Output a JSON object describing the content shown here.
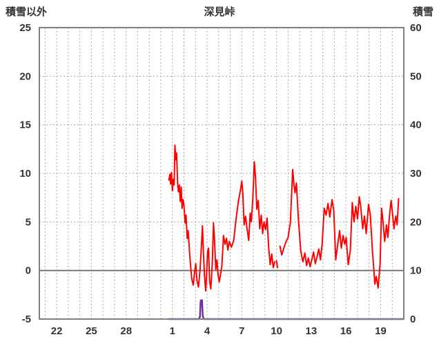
{
  "header": {
    "left_axis_title": "積雪以外",
    "title": "深見峠",
    "right_axis_title": "積雪"
  },
  "chart_data": {
    "type": "line",
    "title": "深見峠",
    "left_axis": {
      "title": "積雪以外",
      "min": -5,
      "max": 25,
      "ticks": [
        25,
        20,
        15,
        10,
        5,
        0,
        -5
      ],
      "zero_line": 0
    },
    "right_axis": {
      "title": "積雪",
      "min": 0,
      "max": 60,
      "ticks": [
        60,
        50,
        40,
        30,
        20,
        10,
        0
      ]
    },
    "x_axis": {
      "domain_days": [
        20.5,
        52
      ],
      "daily_grid": [
        21,
        51
      ],
      "ticks": [
        {
          "day": 22,
          "label": "22"
        },
        {
          "day": 25,
          "label": "25"
        },
        {
          "day": 28,
          "label": "28"
        },
        {
          "day": 32,
          "label": "1"
        },
        {
          "day": 35,
          "label": "4"
        },
        {
          "day": 38,
          "label": "7"
        },
        {
          "day": 41,
          "label": "10"
        },
        {
          "day": 44,
          "label": "13"
        },
        {
          "day": 47,
          "label": "16"
        },
        {
          "day": 50,
          "label": "19"
        }
      ]
    },
    "grid": true,
    "legend_position": "none",
    "series": [
      {
        "name": "積雪以外",
        "axis": "left",
        "color": "#ff0000",
        "width": 2,
        "segments": [
          [
            [
              31.7,
              9.3
            ],
            [
              31.78,
              9.9
            ],
            [
              31.85,
              8.9
            ],
            [
              31.92,
              10.1
            ],
            [
              32.0,
              8.2
            ],
            [
              32.08,
              9.4
            ],
            [
              32.15,
              8.8
            ],
            [
              32.22,
              12.9
            ],
            [
              32.3,
              11.4
            ],
            [
              32.36,
              12.1
            ],
            [
              32.45,
              9.0
            ],
            [
              32.52,
              8.1
            ],
            [
              32.6,
              8.8
            ],
            [
              32.68,
              7.1
            ],
            [
              32.76,
              8.6
            ],
            [
              32.84,
              6.4
            ],
            [
              32.92,
              7.3
            ],
            [
              33.0,
              6.7
            ],
            [
              33.1,
              4.9
            ],
            [
              33.18,
              5.7
            ],
            [
              33.28,
              3.3
            ],
            [
              33.36,
              4.1
            ],
            [
              33.48,
              1.9
            ],
            [
              33.58,
              0.4
            ],
            [
              33.68,
              -0.9
            ],
            [
              33.8,
              -1.5
            ],
            [
              33.92,
              -0.2
            ],
            [
              34.02,
              0.7
            ],
            [
              34.12,
              -1.0
            ],
            [
              34.25,
              -1.7
            ],
            [
              34.4,
              0.2
            ],
            [
              34.52,
              2.8
            ],
            [
              34.6,
              4.6
            ],
            [
              34.68,
              1.8
            ],
            [
              34.78,
              -0.7
            ],
            [
              34.88,
              -2.1
            ],
            [
              34.96,
              -0.3
            ],
            [
              35.04,
              1.9
            ],
            [
              35.12,
              2.3
            ],
            [
              35.22,
              -1.1
            ],
            [
              35.32,
              -1.9
            ],
            [
              35.45,
              0.8
            ],
            [
              35.55,
              4.9
            ],
            [
              35.65,
              3.0
            ],
            [
              35.75,
              0.1
            ],
            [
              35.85,
              1.1
            ],
            [
              35.95,
              -0.5
            ],
            [
              36.05,
              -1.2
            ],
            [
              36.15,
              -0.5
            ],
            [
              36.28,
              0.5
            ],
            [
              36.42,
              3.6
            ],
            [
              36.55,
              2.7
            ],
            [
              36.68,
              3.3
            ],
            [
              36.8,
              2.1
            ],
            [
              36.92,
              3.0
            ],
            [
              37.1,
              2.4
            ],
            [
              37.3,
              3.1
            ],
            [
              37.5,
              5.3
            ],
            [
              37.7,
              7.1
            ],
            [
              37.9,
              8.4
            ],
            [
              38.0,
              9.2
            ],
            [
              38.08,
              8.1
            ],
            [
              38.2,
              4.7
            ],
            [
              38.32,
              5.6
            ],
            [
              38.45,
              4.3
            ],
            [
              38.6,
              3.1
            ],
            [
              38.72,
              5.9
            ],
            [
              38.82,
              5.0
            ],
            [
              38.95,
              7.4
            ],
            [
              39.08,
              11.2
            ],
            [
              39.18,
              9.7
            ],
            [
              39.3,
              6.3
            ],
            [
              39.42,
              7.2
            ],
            [
              39.55,
              4.3
            ],
            [
              39.68,
              5.7
            ],
            [
              39.8,
              3.8
            ],
            [
              39.92,
              5.0
            ],
            [
              40.05,
              4.2
            ],
            [
              40.18,
              5.4
            ],
            [
              40.32,
              2.4
            ],
            [
              40.45,
              0.6
            ],
            [
              40.58,
              1.7
            ],
            [
              40.72,
              0.3
            ],
            [
              40.85,
              0.9
            ]
          ],
          [
            [
              41.0,
              1.0
            ],
            [
              41.08,
              0.3
            ]
          ],
          [
            [
              41.3,
              2.5
            ],
            [
              41.45,
              1.6
            ],
            [
              41.6,
              2.2
            ],
            [
              41.8,
              2.9
            ],
            [
              42.0,
              3.4
            ],
            [
              42.2,
              5.0
            ],
            [
              42.4,
              10.4
            ],
            [
              42.5,
              8.9
            ],
            [
              42.6,
              8.0
            ],
            [
              42.72,
              9.0
            ],
            [
              42.9,
              5.1
            ],
            [
              43.1,
              2.0
            ],
            [
              43.28,
              0.9
            ],
            [
              43.45,
              1.8
            ],
            [
              43.6,
              0.5
            ],
            [
              43.75,
              1.3
            ],
            [
              43.9,
              0.4
            ],
            [
              44.05,
              1.1
            ],
            [
              44.2,
              1.9
            ],
            [
              44.35,
              0.7
            ],
            [
              44.5,
              1.4
            ],
            [
              44.65,
              2.2
            ],
            [
              44.8,
              1.1
            ],
            [
              44.95,
              2.8
            ],
            [
              45.12,
              6.4
            ],
            [
              45.28,
              5.7
            ],
            [
              45.45,
              6.9
            ],
            [
              45.6,
              5.5
            ],
            [
              45.8,
              7.3
            ],
            [
              45.95,
              6.1
            ],
            [
              46.12,
              1.1
            ],
            [
              46.28,
              2.6
            ],
            [
              46.45,
              4.1
            ],
            [
              46.6,
              2.3
            ],
            [
              46.75,
              3.6
            ],
            [
              46.9,
              2.7
            ],
            [
              47.02,
              3.4
            ],
            [
              47.2,
              0.6
            ],
            [
              47.38,
              2.1
            ],
            [
              47.55,
              7.0
            ],
            [
              47.7,
              5.0
            ],
            [
              47.85,
              6.6
            ],
            [
              48.0,
              5.3
            ],
            [
              48.15,
              7.6
            ],
            [
              48.28,
              6.6
            ],
            [
              48.45,
              4.3
            ],
            [
              48.6,
              5.6
            ],
            [
              48.75,
              3.8
            ],
            [
              48.95,
              6.8
            ],
            [
              49.1,
              5.8
            ],
            [
              49.3,
              1.9
            ],
            [
              49.5,
              -1.4
            ],
            [
              49.62,
              -0.6
            ],
            [
              49.78,
              -1.8
            ],
            [
              49.95,
              0.6
            ],
            [
              50.08,
              6.4
            ],
            [
              50.2,
              5.1
            ],
            [
              50.35,
              3.0
            ],
            [
              50.5,
              4.7
            ],
            [
              50.62,
              3.4
            ],
            [
              50.78,
              5.9
            ],
            [
              50.9,
              7.2
            ],
            [
              51.02,
              5.9
            ],
            [
              51.15,
              4.3
            ],
            [
              51.3,
              5.6
            ],
            [
              51.42,
              4.7
            ],
            [
              51.55,
              7.4
            ]
          ]
        ]
      },
      {
        "name": "積雪",
        "axis": "right",
        "color": "#7030a0",
        "width": 2.5,
        "segments": [
          [
            [
              31.7,
              0
            ],
            [
              34.3,
              0
            ],
            [
              34.38,
              0.5
            ],
            [
              34.44,
              3.8
            ],
            [
              34.56,
              3.9
            ],
            [
              34.62,
              0.6
            ],
            [
              34.72,
              0
            ],
            [
              51.9,
              0
            ]
          ]
        ]
      }
    ],
    "colors": {
      "plot_border": "#808080",
      "grid_line": "#a8a8a8",
      "zero_line": "#707070",
      "text": "#333333",
      "background": "#ffffff"
    }
  }
}
